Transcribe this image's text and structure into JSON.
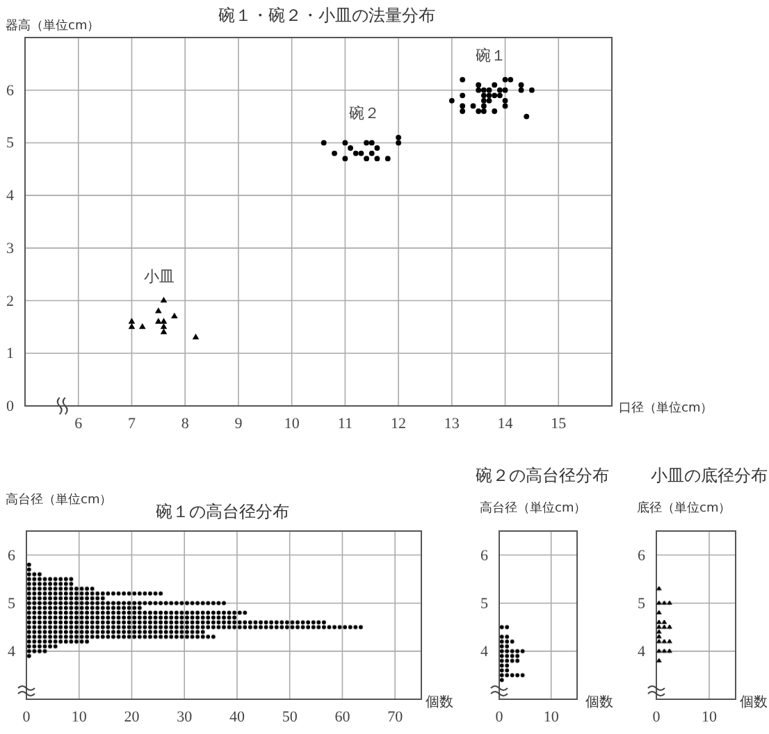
{
  "chart_data": [
    {
      "type": "scatter",
      "title": "碗１・碗２・小皿の法量分布",
      "xlabel": "口径（単位cm）",
      "ylabel": "器高（単位cm）",
      "xlim": [
        5,
        16
      ],
      "ylim": [
        0,
        7
      ],
      "xticks": [
        6,
        7,
        8,
        9,
        10,
        11,
        12,
        13,
        14,
        15
      ],
      "yticks": [
        0,
        1,
        2,
        3,
        4,
        5,
        6
      ],
      "grid": true,
      "legend": false,
      "series": [
        {
          "name": "碗１",
          "color": "#000000",
          "marker": "circle",
          "x": [
            13.2,
            13.0,
            13.2,
            13.2,
            13.2,
            13.4,
            13.5,
            13.5,
            13.5,
            13.6,
            13.6,
            13.6,
            13.6,
            13.6,
            13.7,
            13.7,
            13.7,
            13.8,
            13.8,
            13.8,
            13.9,
            13.9,
            14.0,
            14.1,
            14.0,
            14.0,
            14.0,
            14.3,
            14.3,
            14.5,
            14.4
          ],
          "values": [
            6.2,
            5.8,
            5.9,
            5.7,
            5.6,
            5.7,
            6.1,
            6.0,
            5.6,
            6.0,
            5.9,
            5.8,
            5.7,
            5.6,
            6.0,
            5.9,
            5.8,
            6.1,
            5.9,
            5.6,
            6.0,
            5.9,
            6.2,
            6.2,
            6.0,
            5.8,
            5.7,
            6.1,
            6.0,
            6.0,
            5.5
          ]
        },
        {
          "name": "碗２",
          "color": "#000000",
          "marker": "circle",
          "x": [
            10.6,
            10.8,
            11.0,
            11.0,
            11.1,
            11.2,
            11.3,
            11.4,
            11.5,
            11.4,
            11.5,
            11.6,
            11.6,
            11.8,
            12.0,
            12.0
          ],
          "values": [
            5.0,
            4.8,
            5.0,
            4.7,
            4.9,
            4.8,
            4.8,
            5.0,
            5.0,
            4.7,
            4.8,
            4.9,
            4.7,
            4.7,
            5.1,
            5.0
          ]
        },
        {
          "name": "小皿",
          "color": "#000000",
          "marker": "triangle",
          "x": [
            7.0,
            7.0,
            7.2,
            7.5,
            7.5,
            7.6,
            7.6,
            7.6,
            7.6,
            7.8,
            8.2
          ],
          "values": [
            1.6,
            1.5,
            1.5,
            1.8,
            1.6,
            2.0,
            1.6,
            1.5,
            1.4,
            1.7,
            1.3
          ]
        }
      ]
    },
    {
      "type": "histogram",
      "orientation": "horizontal",
      "title": "碗１の高台径分布",
      "xlabel": "個数",
      "ylabel": "高台径（単位cm）",
      "color": "#000000",
      "marker": "circle",
      "bins": [
        3.85,
        3.95,
        4.05,
        4.15,
        4.25,
        4.35,
        4.45,
        4.55,
        4.65,
        4.75,
        4.85,
        4.95,
        5.05,
        5.15,
        5.25,
        5.35,
        5.45,
        5.55,
        5.65,
        5.75,
        5.85
      ],
      "values": [
        1,
        4,
        6,
        12,
        36,
        34,
        64,
        57,
        40,
        42,
        22,
        38,
        15,
        26,
        13,
        9,
        9,
        3,
        1,
        1
      ],
      "xlim": [
        0,
        75
      ],
      "xticks": [
        0,
        10,
        20,
        30,
        40,
        50,
        60,
        70
      ],
      "ylim": [
        3,
        6.5
      ],
      "yticks": [
        4,
        5,
        6
      ],
      "grid": true
    },
    {
      "type": "histogram",
      "orientation": "horizontal",
      "title": "碗２の高台径分布",
      "xlabel": "個数",
      "ylabel": "高台径（単位cm）",
      "color": "#000000",
      "marker": "circle",
      "bins": [
        3.35,
        3.45,
        3.55,
        3.65,
        3.75,
        3.85,
        3.95,
        4.05,
        4.15,
        4.25,
        4.35,
        4.45,
        4.55
      ],
      "values": [
        1,
        5,
        2,
        2,
        4,
        4,
        5,
        2,
        3,
        2,
        0,
        2
      ],
      "xlim": [
        0,
        15
      ],
      "xticks": [
        0,
        10
      ],
      "ylim": [
        3,
        6.5
      ],
      "yticks": [
        4,
        5,
        6
      ],
      "grid": true
    },
    {
      "type": "histogram",
      "orientation": "horizontal",
      "title": "小皿の底径分布",
      "xlabel": "個数",
      "ylabel": "底径（単位cm）",
      "color": "#000000",
      "marker": "triangle",
      "bins": [
        3.75,
        3.85,
        3.95,
        4.05,
        4.15,
        4.25,
        4.35,
        4.45,
        4.55,
        4.65,
        4.75,
        4.85,
        4.95,
        5.05,
        5.15,
        5.25,
        5.35
      ],
      "values": [
        1,
        0,
        3,
        0,
        3,
        1,
        1,
        3,
        2,
        0,
        1,
        0,
        3,
        0,
        0,
        1
      ],
      "xlim": [
        0,
        15
      ],
      "xticks": [
        0,
        10
      ],
      "ylim": [
        3,
        6.5
      ],
      "yticks": [
        4,
        5,
        6
      ],
      "grid": true
    }
  ]
}
